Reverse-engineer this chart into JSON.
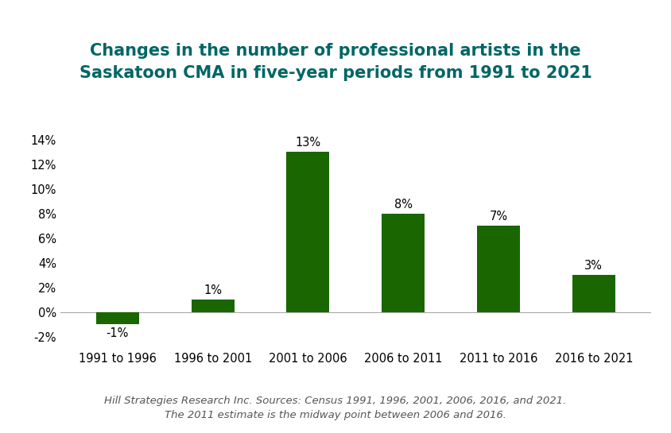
{
  "title": "Changes in the number of professional artists in the\nSaskatoon CMA in five-year periods from 1991 to 2021",
  "categories": [
    "1991 to 1996",
    "1996 to 2001",
    "2001 to 2006",
    "2006 to 2011",
    "2011 to 2016",
    "2016 to 2021"
  ],
  "values": [
    -1,
    1,
    13,
    8,
    7,
    3
  ],
  "bar_color": "#1a6600",
  "title_color": "#006666",
  "label_color": "#000000",
  "ytick_labels": [
    "-2%",
    "0%",
    "2%",
    "4%",
    "6%",
    "8%",
    "10%",
    "12%",
    "14%"
  ],
  "ytick_values": [
    -2,
    0,
    2,
    4,
    6,
    8,
    10,
    12,
    14
  ],
  "ylim": [
    -2.8,
    15.5
  ],
  "footnote_line1": "Hill Strategies Research Inc. Sources: Census 1991, 1996, 2001, 2006, 2016, and 2021.",
  "footnote_line2": "The 2011 estimate is the midway point between 2006 and 2016.",
  "title_fontsize": 15,
  "label_fontsize": 10.5,
  "tick_fontsize": 10.5,
  "footnote_fontsize": 9.5,
  "bar_width": 0.45,
  "background_color": "#ffffff"
}
